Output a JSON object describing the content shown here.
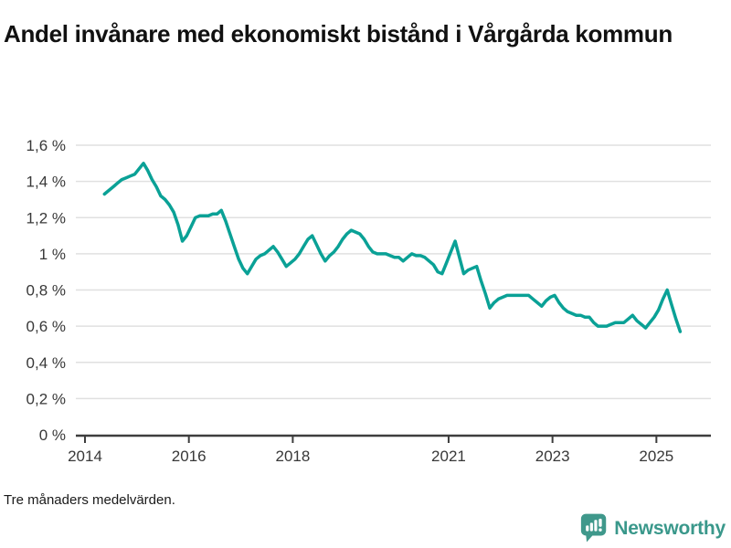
{
  "header": {
    "title": "Andel invånare med ekonomiskt bistånd i Vårgårda kommun"
  },
  "footer": {
    "note": "Tre månaders medelvärden."
  },
  "branding": {
    "name": "Newsworthy",
    "icon": "bar-chart-speech-bubble-icon",
    "color": "#3a988b",
    "icon_color": "#3f988b"
  },
  "colors": {
    "line": "#0aa196",
    "grid": "#e0e0e0",
    "axis": "#3d3d3d",
    "tick_text": "#383838"
  },
  "chart_data": {
    "type": "line",
    "title": "Andel invånare med ekonomiskt bistånd i Vårgårda kommun",
    "note": "Tre månaders medelvärden.",
    "unit": "%",
    "grid": "horizontal",
    "legend": "none",
    "line_color": "#0aa196",
    "x_start": "2014-05",
    "x_interval": "monthly",
    "xlim_years": [
      2013.82,
      2026.05
    ],
    "ylim": [
      0,
      1.6
    ],
    "y_ticks": {
      "labels": [
        "0 %",
        "0,2 %",
        "0,4 %",
        "0,6 %",
        "0,8 %",
        "1 %",
        "1,2 %",
        "1,4 %",
        "1,6 %"
      ],
      "values": [
        0,
        0.2,
        0.4,
        0.6,
        0.8,
        1.0,
        1.2,
        1.4,
        1.6
      ]
    },
    "x_ticks": {
      "labels": [
        "2014",
        "2016",
        "2018",
        "2021",
        "2023",
        "2025"
      ],
      "years": [
        2014,
        2016,
        2018,
        2021,
        2023,
        2025
      ]
    },
    "values": [
      1.33,
      1.35,
      1.37,
      1.39,
      1.41,
      1.42,
      1.43,
      1.44,
      1.47,
      1.5,
      1.46,
      1.41,
      1.37,
      1.32,
      1.3,
      1.27,
      1.23,
      1.16,
      1.07,
      1.1,
      1.15,
      1.2,
      1.21,
      1.21,
      1.21,
      1.22,
      1.22,
      1.24,
      1.18,
      1.11,
      1.04,
      0.97,
      0.92,
      0.89,
      0.93,
      0.97,
      0.99,
      1.0,
      1.02,
      1.04,
      1.01,
      0.97,
      0.93,
      0.95,
      0.97,
      1.0,
      1.04,
      1.08,
      1.1,
      1.05,
      1.0,
      0.96,
      0.99,
      1.01,
      1.04,
      1.08,
      1.11,
      1.13,
      1.12,
      1.11,
      1.08,
      1.04,
      1.01,
      1.0,
      1.0,
      1.0,
      0.99,
      0.98,
      0.98,
      0.96,
      0.98,
      1.0,
      0.99,
      0.99,
      0.98,
      0.96,
      0.94,
      0.9,
      0.89,
      0.95,
      1.01,
      1.07,
      0.98,
      0.89,
      0.91,
      0.92,
      0.93,
      0.85,
      0.78,
      0.7,
      0.73,
      0.75,
      0.76,
      0.77,
      0.77,
      0.77,
      0.77,
      0.77,
      0.77,
      0.75,
      0.73,
      0.71,
      0.74,
      0.76,
      0.77,
      0.73,
      0.7,
      0.68,
      0.67,
      0.66,
      0.66,
      0.65,
      0.65,
      0.62,
      0.6,
      0.6,
      0.6,
      0.61,
      0.62,
      0.62,
      0.62,
      0.64,
      0.66,
      0.63,
      0.61,
      0.59,
      0.62,
      0.65,
      0.69,
      0.75,
      0.8,
      0.72,
      0.64,
      0.57
    ]
  }
}
